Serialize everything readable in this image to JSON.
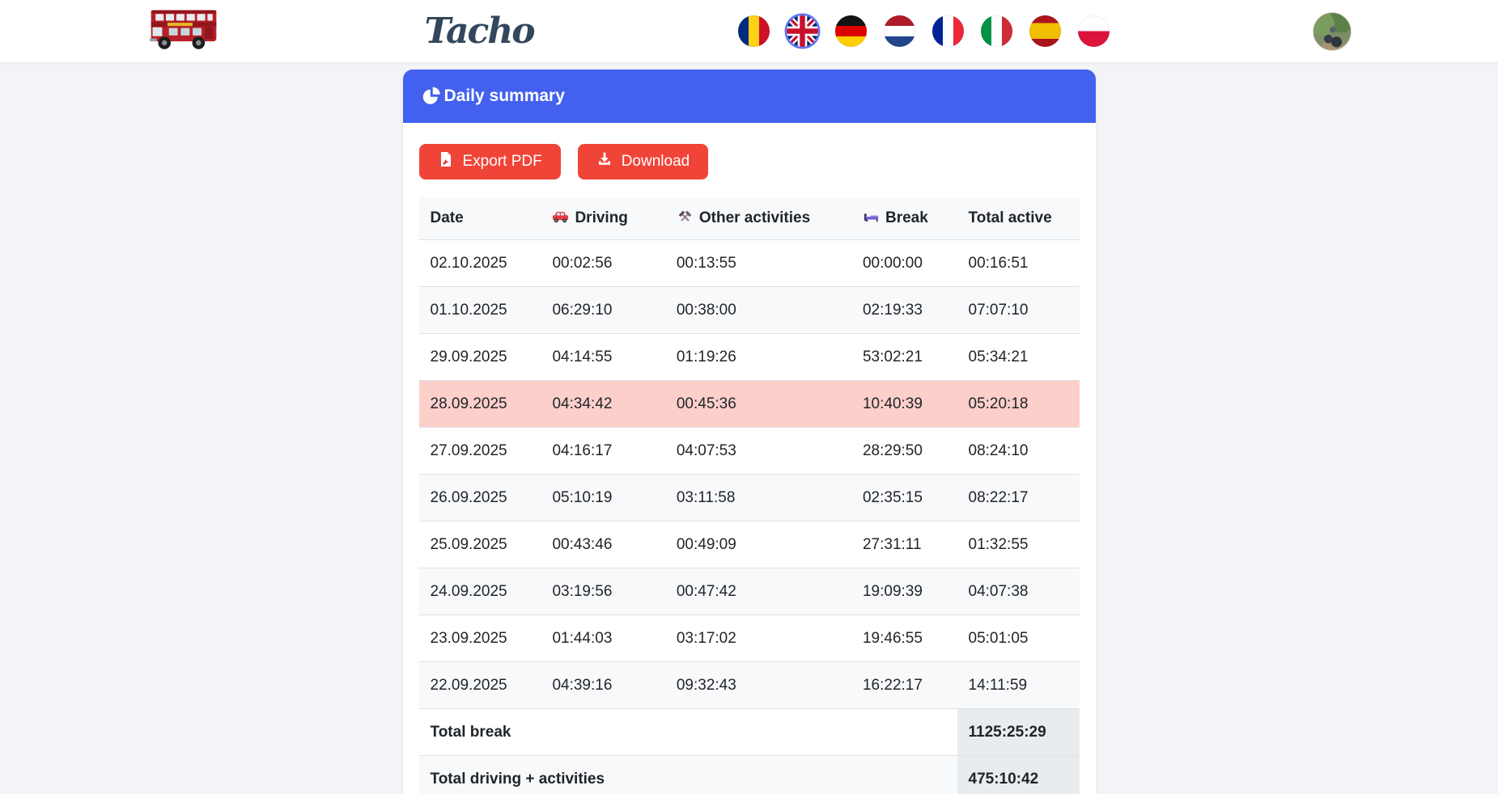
{
  "header": {
    "title": "Tacho",
    "logo": "red-double-decker-bus",
    "languages": [
      {
        "code": "ro",
        "name": "Romanian",
        "selected": false
      },
      {
        "code": "gb",
        "name": "English",
        "selected": true
      },
      {
        "code": "de",
        "name": "German",
        "selected": false
      },
      {
        "code": "nl",
        "name": "Dutch",
        "selected": false
      },
      {
        "code": "fr",
        "name": "French",
        "selected": false
      },
      {
        "code": "it",
        "name": "Italian",
        "selected": false
      },
      {
        "code": "es",
        "name": "Spanish",
        "selected": false
      },
      {
        "code": "pl",
        "name": "Polish",
        "selected": false
      }
    ]
  },
  "card": {
    "title": "Daily summary",
    "export_pdf_label": "Export PDF",
    "download_label": "Download"
  },
  "table": {
    "columns": [
      {
        "label": "Date",
        "icon": null
      },
      {
        "label": "Driving",
        "icon": "car-icon"
      },
      {
        "label": "Other activities",
        "icon": "tools-icon"
      },
      {
        "label": "Break",
        "icon": "bed-icon"
      },
      {
        "label": "Total active",
        "icon": null
      }
    ],
    "highlighted_date": "28.09.2025",
    "rows": [
      [
        "02.10.2025",
        "00:02:56",
        "00:13:55",
        "00:00:00",
        "00:16:51"
      ],
      [
        "01.10.2025",
        "06:29:10",
        "00:38:00",
        "02:19:33",
        "07:07:10"
      ],
      [
        "29.09.2025",
        "04:14:55",
        "01:19:26",
        "53:02:21",
        "05:34:21"
      ],
      [
        "28.09.2025",
        "04:34:42",
        "00:45:36",
        "10:40:39",
        "05:20:18"
      ],
      [
        "27.09.2025",
        "04:16:17",
        "04:07:53",
        "28:29:50",
        "08:24:10"
      ],
      [
        "26.09.2025",
        "05:10:19",
        "03:11:58",
        "02:35:15",
        "08:22:17"
      ],
      [
        "25.09.2025",
        "00:43:46",
        "00:49:09",
        "27:31:11",
        "01:32:55"
      ],
      [
        "24.09.2025",
        "03:19:56",
        "00:47:42",
        "19:09:39",
        "04:07:38"
      ],
      [
        "23.09.2025",
        "01:44:03",
        "03:17:02",
        "19:46:55",
        "05:01:05"
      ],
      [
        "22.09.2025",
        "04:39:16",
        "09:32:43",
        "16:22:17",
        "14:11:59"
      ]
    ],
    "totals": [
      {
        "label": "Total break",
        "value": "1125:25:29"
      },
      {
        "label": "Total driving + activities",
        "value": "475:10:42"
      }
    ]
  },
  "colors": {
    "primary": "#4361ee",
    "danger": "#f04438",
    "page_bg": "#f3f4f8",
    "row_highlight": "#fccfcb",
    "row_stripe": "#f8f9fa",
    "total_value_bg": "#e9ecef",
    "table_border": "#dee2e6",
    "text": "#212529",
    "logo_text": "#33475c"
  }
}
